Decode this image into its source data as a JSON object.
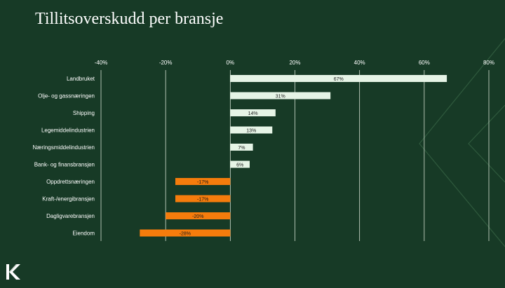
{
  "title": "Tillitsoverskudd per bransje",
  "logo_icon": "k-logo-icon",
  "colors": {
    "background": "#173a26",
    "positive_bar": "#e6f4e6",
    "negative_bar": "#f57c0c",
    "gridline": "#d6e2d4",
    "text": "#ffffff",
    "bar_label": "#1a1a1a"
  },
  "chart_data": {
    "type": "bar",
    "orientation": "horizontal",
    "title": "Tillitsoverskudd per bransje",
    "xlim": [
      -40,
      80
    ],
    "xticks": [
      -40,
      -20,
      0,
      20,
      40,
      60,
      80
    ],
    "xtick_labels": [
      "-40%",
      "-20%",
      "0%",
      "20%",
      "40%",
      "60%",
      "80%"
    ],
    "grid": true,
    "categories": [
      "Landbruket",
      "Olje- og gassnæringen",
      "Shipping",
      "Legemiddelindustrien",
      "Næringsmiddelindustrien",
      "Bank- og finansbransjen",
      "Oppdrettsnæringen",
      "Kraft-/energibransjen",
      "Dagligvarebransjen",
      "Eiendom"
    ],
    "values": [
      67,
      31,
      14,
      13,
      7,
      6,
      -17,
      -17,
      -20,
      -28
    ],
    "value_labels": [
      "67%",
      "31%",
      "14%",
      "13%",
      "7%",
      "6%",
      "-17%",
      "-17%",
      "-20%",
      "-28%"
    ]
  }
}
